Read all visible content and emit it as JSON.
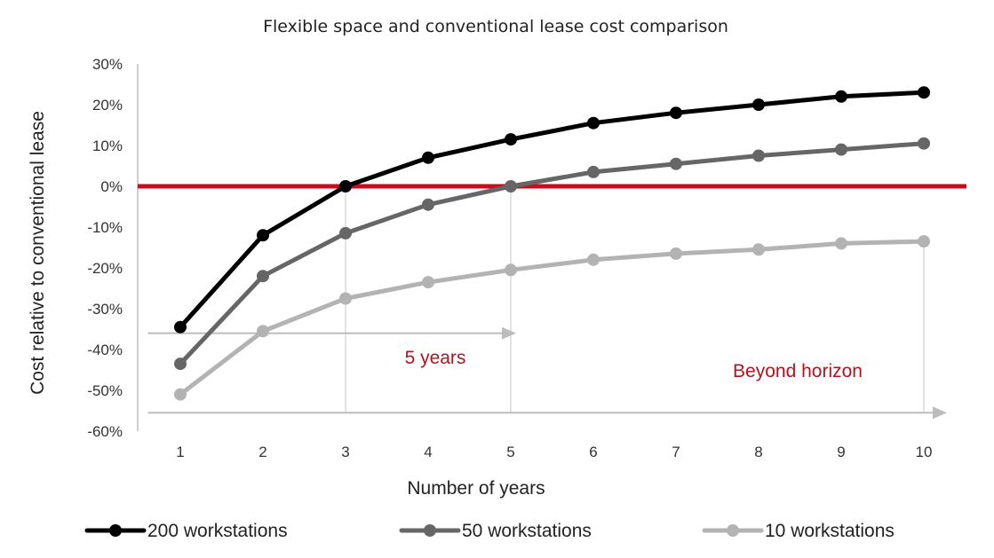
{
  "chart_data": {
    "type": "line",
    "title": "Flexible space and conventional lease cost comparison",
    "xlabel": "Number of years",
    "ylabel": "Cost relative to conventional lease",
    "x": [
      1,
      2,
      3,
      4,
      5,
      6,
      7,
      8,
      9,
      10
    ],
    "x_tick_labels": [
      "1",
      "2",
      "3",
      "4",
      "5",
      "6",
      "7",
      "8",
      "9",
      "10"
    ],
    "ylim": [
      -60,
      30
    ],
    "y_ticks": [
      30,
      20,
      10,
      0,
      -10,
      -20,
      -30,
      -40,
      -50,
      -60
    ],
    "y_tick_labels": [
      "30%",
      "20%",
      "10%",
      "0%",
      "-10%",
      "-20%",
      "-30%",
      "-40%",
      "-50%",
      "-60%"
    ],
    "grid": false,
    "legend_position": "bottom",
    "series": [
      {
        "name": "200 workstations",
        "color": "#000000",
        "values": [
          -34.5,
          -12,
          0,
          7,
          11.5,
          15.5,
          18,
          20,
          22,
          23
        ]
      },
      {
        "name": "50 workstations",
        "color": "#666666",
        "values": [
          -43.5,
          -22,
          -11.5,
          -4.5,
          0,
          3.5,
          5.5,
          7.5,
          9,
          10.5
        ]
      },
      {
        "name": "10 workstations",
        "color": "#b3b3b3",
        "values": [
          -51,
          -35.5,
          -27.5,
          -23.5,
          -20.5,
          -18,
          -16.5,
          -15.5,
          -14,
          -13.5
        ]
      }
    ],
    "reference_line": {
      "y": 0,
      "color": "#cc0a1e"
    },
    "annotations": [
      {
        "text": "5 years",
        "color": "#b5121b",
        "x_start": 0.5,
        "x_end": 5,
        "arrow_y": -36
      },
      {
        "text": "Beyond horizon",
        "color": "#b5121b",
        "x_start": 0.5,
        "x_end": 10,
        "arrow_y": -55.5
      }
    ],
    "vertical_guides": [
      3,
      5,
      10
    ]
  }
}
